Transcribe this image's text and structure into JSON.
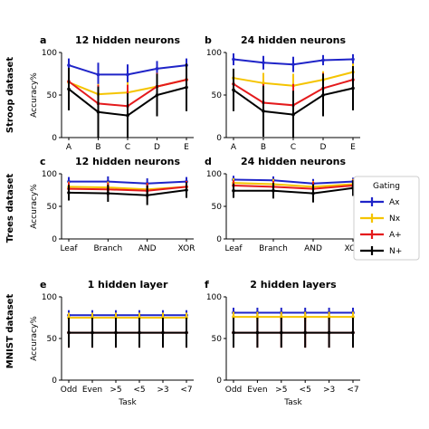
{
  "legend": {
    "title": "Gating",
    "entries": [
      {
        "label": "Ax",
        "color": "#1f24c8"
      },
      {
        "label": "Nx",
        "color": "#f5c400"
      },
      {
        "label": "A+",
        "color": "#e41a1c"
      },
      {
        "label": "N+",
        "color": "#000000"
      }
    ]
  },
  "row_labels": [
    "Stroop dataset",
    "Trees dataset",
    "MNIST dataset"
  ],
  "chart_data": [
    {
      "panel": "a",
      "type": "line",
      "title": "12 hidden neurons",
      "ylabel": "Accuracy%",
      "xlabel": "",
      "ylim": [
        0,
        100
      ],
      "yticks": [
        0,
        50,
        100
      ],
      "categories": [
        "A",
        "B",
        "C",
        "D",
        "E"
      ],
      "series": [
        {
          "name": "Ax",
          "values": [
            85,
            74,
            74,
            81,
            85
          ],
          "err": [
            8,
            14,
            12,
            9,
            8
          ]
        },
        {
          "name": "Nx",
          "values": [
            65,
            51,
            53,
            60,
            68
          ],
          "err": [
            10,
            12,
            12,
            10,
            10
          ]
        },
        {
          "name": "A+",
          "values": [
            66,
            40,
            37,
            60,
            68
          ],
          "err": [
            14,
            22,
            25,
            16,
            14
          ]
        },
        {
          "name": "N+",
          "values": [
            57,
            30,
            26,
            50,
            59
          ],
          "err": [
            25,
            30,
            26,
            25,
            28
          ]
        }
      ]
    },
    {
      "panel": "b",
      "type": "line",
      "title": "24 hidden neurons",
      "ylabel": "",
      "xlabel": "",
      "ylim": [
        0,
        100
      ],
      "yticks": [
        0,
        50,
        100
      ],
      "categories": [
        "A",
        "B",
        "C",
        "D",
        "E"
      ],
      "series": [
        {
          "name": "Ax",
          "values": [
            92,
            88,
            86,
            91,
            92
          ],
          "err": [
            7,
            8,
            9,
            6,
            6
          ]
        },
        {
          "name": "Nx",
          "values": [
            70,
            64,
            61,
            68,
            77
          ],
          "err": [
            10,
            12,
            14,
            10,
            10
          ]
        },
        {
          "name": "A+",
          "values": [
            63,
            41,
            38,
            58,
            68
          ],
          "err": [
            14,
            22,
            25,
            18,
            15
          ]
        },
        {
          "name": "N+",
          "values": [
            56,
            31,
            27,
            50,
            58
          ],
          "err": [
            25,
            30,
            28,
            25,
            26
          ]
        }
      ]
    },
    {
      "panel": "c",
      "type": "line",
      "title": "12 hidden neurons",
      "ylabel": "Accuracy%",
      "xlabel": "",
      "ylim": [
        0,
        100
      ],
      "yticks": [
        0,
        50,
        100
      ],
      "categories": [
        "Leaf",
        "Branch",
        "AND",
        "XOR"
      ],
      "series": [
        {
          "name": "Ax",
          "values": [
            88,
            88,
            85,
            88
          ],
          "err": [
            7,
            8,
            8,
            7
          ]
        },
        {
          "name": "Nx",
          "values": [
            80,
            79,
            76,
            80
          ],
          "err": [
            8,
            9,
            10,
            8
          ]
        },
        {
          "name": "A+",
          "values": [
            77,
            76,
            74,
            80
          ],
          "err": [
            10,
            10,
            12,
            9
          ]
        },
        {
          "name": "N+",
          "values": [
            71,
            70,
            67,
            75
          ],
          "err": [
            12,
            13,
            15,
            12
          ]
        }
      ]
    },
    {
      "panel": "d",
      "type": "line",
      "title": "24 hidden neurons",
      "ylabel": "",
      "xlabel": "",
      "ylim": [
        0,
        100
      ],
      "yticks": [
        0,
        50,
        100
      ],
      "categories": [
        "Leaf",
        "Branch",
        "AND",
        "XOR"
      ],
      "series": [
        {
          "name": "Ax",
          "values": [
            91,
            90,
            85,
            88
          ],
          "err": [
            6,
            6,
            7,
            6
          ]
        },
        {
          "name": "Nx",
          "values": [
            86,
            84,
            80,
            84
          ],
          "err": [
            7,
            8,
            9,
            8
          ]
        },
        {
          "name": "A+",
          "values": [
            82,
            80,
            77,
            82
          ],
          "err": [
            8,
            9,
            11,
            9
          ]
        },
        {
          "name": "N+",
          "values": [
            74,
            74,
            70,
            78
          ],
          "err": [
            11,
            12,
            14,
            12
          ]
        }
      ]
    },
    {
      "panel": "e",
      "type": "line",
      "title": "1 hidden layer",
      "ylabel": "Accuracy%",
      "xlabel": "Task",
      "ylim": [
        0,
        100
      ],
      "yticks": [
        0,
        50,
        100
      ],
      "categories": [
        "Odd",
        "Even",
        ">5",
        "<5",
        ">3",
        "<7"
      ],
      "series": [
        {
          "name": "Ax",
          "values": [
            78,
            78,
            78,
            78,
            78,
            78
          ],
          "err": [
            6,
            6,
            6,
            6,
            6,
            6
          ]
        },
        {
          "name": "Nx",
          "values": [
            75,
            75,
            75,
            75,
            75,
            75
          ],
          "err": [
            6,
            6,
            6,
            6,
            6,
            6
          ]
        },
        {
          "name": "A+",
          "values": [
            57,
            57,
            57,
            57,
            57,
            57
          ],
          "err": [
            18,
            18,
            18,
            18,
            18,
            18
          ]
        },
        {
          "name": "N+",
          "values": [
            57,
            57,
            57,
            57,
            57,
            57
          ],
          "err": [
            18,
            18,
            18,
            18,
            18,
            18
          ]
        }
      ]
    },
    {
      "panel": "f",
      "type": "line",
      "title": "2 hidden layers",
      "ylabel": "",
      "xlabel": "Task",
      "ylim": [
        0,
        100
      ],
      "yticks": [
        0,
        50,
        100
      ],
      "categories": [
        "Odd",
        "Even",
        ">5",
        "<5",
        ">3",
        "<7"
      ],
      "series": [
        {
          "name": "Ax",
          "values": [
            81,
            81,
            81,
            81,
            81,
            81
          ],
          "err": [
            6,
            6,
            6,
            6,
            6,
            6
          ]
        },
        {
          "name": "Nx",
          "values": [
            76,
            76,
            76,
            76,
            76,
            76
          ],
          "err": [
            6,
            6,
            6,
            6,
            6,
            6
          ]
        },
        {
          "name": "A+",
          "values": [
            57,
            57,
            57,
            57,
            57,
            57
          ],
          "err": [
            18,
            18,
            18,
            18,
            18,
            18
          ]
        },
        {
          "name": "N+",
          "values": [
            57,
            57,
            57,
            57,
            57,
            57
          ],
          "err": [
            18,
            18,
            18,
            18,
            18,
            18
          ]
        }
      ]
    }
  ]
}
